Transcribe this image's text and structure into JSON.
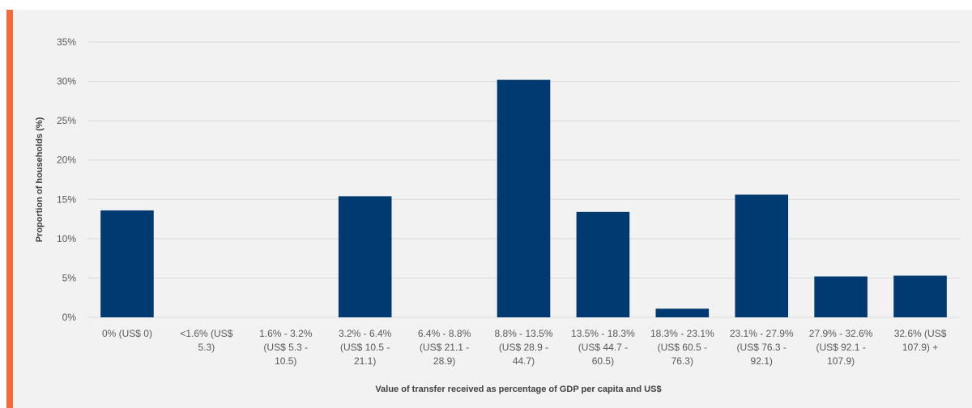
{
  "colors": {
    "accent": "#f26b3a",
    "bar": "#003a70",
    "gridline": "#d9d9d9",
    "background": "#f2f2f2"
  },
  "chart_data": {
    "type": "bar",
    "xlabel": "Value of transfer received as percentage of GDP per capita and US$",
    "ylabel": "Proportion of households (%)",
    "ylim": [
      0,
      35
    ],
    "y_ticks": [
      "0%",
      "5%",
      "10%",
      "15%",
      "20%",
      "25%",
      "30%",
      "35%"
    ],
    "grid": true,
    "categories": [
      [
        "0% (US$ 0)"
      ],
      [
        "<1.6% (US$",
        "5.3)"
      ],
      [
        "1.6% - 3.2%",
        "(US$ 5.3 -",
        "10.5)"
      ],
      [
        "3.2% - 6.4%",
        "(US$ 10.5 -",
        "21.1)"
      ],
      [
        "6.4% - 8.8%",
        "(US$ 21.1 -",
        "28.9)"
      ],
      [
        "8.8% - 13.5%",
        "(US$ 28.9 -",
        "44.7)"
      ],
      [
        "13.5% - 18.3%",
        "(US$ 44.7 -",
        "60.5)"
      ],
      [
        "18.3% - 23.1%",
        "(US$ 60.5 -",
        "76.3)"
      ],
      [
        "23.1% - 27.9%",
        "(US$ 76.3 -",
        "92.1)"
      ],
      [
        "27.9% - 32.6%",
        "(US$ 92.1 -",
        "107.9)"
      ],
      [
        "32.6% (US$",
        "107.9) +"
      ]
    ],
    "values": [
      13.6,
      0,
      0,
      15.4,
      0,
      30.2,
      13.4,
      1.1,
      15.6,
      5.2,
      5.3
    ]
  }
}
